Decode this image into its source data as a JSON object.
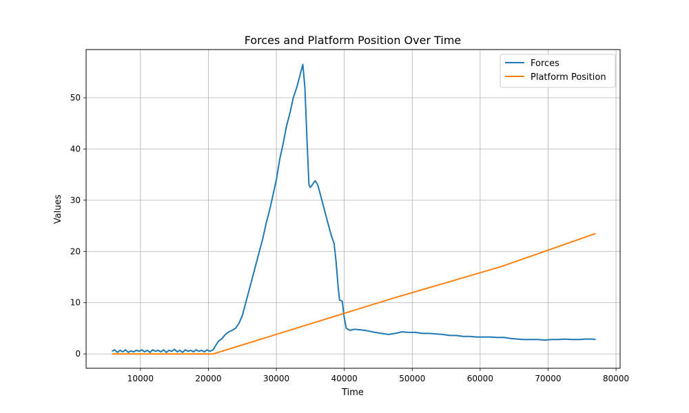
{
  "chart_data": {
    "type": "line",
    "title": "Forces and Platform Position Over Time",
    "xlabel": "Time",
    "ylabel": "Values",
    "xlim": [
      2000,
      80600
    ],
    "ylim": [
      -2.8,
      59.4
    ],
    "xticks": [
      10000,
      20000,
      30000,
      40000,
      50000,
      60000,
      70000,
      80000
    ],
    "yticks": [
      0,
      10,
      20,
      30,
      40,
      50
    ],
    "grid": true,
    "legend": "top-right",
    "series": [
      {
        "name": "Forces",
        "color": "#1f77b4",
        "points": [
          [
            5800,
            0.5
          ],
          [
            6200,
            0.8
          ],
          [
            6600,
            0.3
          ],
          [
            7000,
            0.7
          ],
          [
            7400,
            0.4
          ],
          [
            7800,
            0.8
          ],
          [
            8200,
            0.3
          ],
          [
            8600,
            0.6
          ],
          [
            9000,
            0.4
          ],
          [
            9400,
            0.7
          ],
          [
            9800,
            0.5
          ],
          [
            10200,
            0.8
          ],
          [
            10600,
            0.4
          ],
          [
            11000,
            0.7
          ],
          [
            11400,
            0.3
          ],
          [
            11800,
            0.8
          ],
          [
            12200,
            0.5
          ],
          [
            12600,
            0.7
          ],
          [
            13000,
            0.4
          ],
          [
            13400,
            0.8
          ],
          [
            13800,
            0.3
          ],
          [
            14200,
            0.7
          ],
          [
            14600,
            0.5
          ],
          [
            15000,
            0.9
          ],
          [
            15400,
            0.4
          ],
          [
            15800,
            0.7
          ],
          [
            16200,
            0.3
          ],
          [
            16600,
            0.8
          ],
          [
            17000,
            0.5
          ],
          [
            17400,
            0.7
          ],
          [
            17800,
            0.4
          ],
          [
            18200,
            0.8
          ],
          [
            18600,
            0.5
          ],
          [
            19000,
            0.7
          ],
          [
            19400,
            0.4
          ],
          [
            19800,
            0.8
          ],
          [
            20200,
            0.5
          ],
          [
            20700,
            0.8
          ],
          [
            21000,
            1.5
          ],
          [
            21500,
            2.5
          ],
          [
            22000,
            3.0
          ],
          [
            22500,
            3.8
          ],
          [
            23000,
            4.3
          ],
          [
            23500,
            4.6
          ],
          [
            24000,
            5.0
          ],
          [
            24500,
            6.0
          ],
          [
            25000,
            7.5
          ],
          [
            25500,
            10.0
          ],
          [
            26000,
            12.5
          ],
          [
            26500,
            15.0
          ],
          [
            27000,
            17.5
          ],
          [
            27500,
            20.0
          ],
          [
            28000,
            22.5
          ],
          [
            28500,
            25.5
          ],
          [
            29000,
            28.0
          ],
          [
            29500,
            31.0
          ],
          [
            30000,
            34.0
          ],
          [
            30500,
            38.0
          ],
          [
            31000,
            41.0
          ],
          [
            31500,
            44.5
          ],
          [
            32000,
            47.0
          ],
          [
            32500,
            50.0
          ],
          [
            33000,
            52.0
          ],
          [
            33500,
            54.5
          ],
          [
            33900,
            56.5
          ],
          [
            34200,
            52.0
          ],
          [
            34500,
            42.0
          ],
          [
            34800,
            33.0
          ],
          [
            35000,
            32.5
          ],
          [
            35300,
            33.0
          ],
          [
            35700,
            33.8
          ],
          [
            36100,
            33.0
          ],
          [
            36500,
            31.0
          ],
          [
            37000,
            28.5
          ],
          [
            37500,
            26.0
          ],
          [
            38000,
            23.5
          ],
          [
            38500,
            21.5
          ],
          [
            38800,
            18.0
          ],
          [
            39100,
            13.0
          ],
          [
            39300,
            10.5
          ],
          [
            39700,
            10.3
          ],
          [
            40000,
            7.0
          ],
          [
            40300,
            5.0
          ],
          [
            40800,
            4.6
          ],
          [
            41500,
            4.8
          ],
          [
            42500,
            4.7
          ],
          [
            43500,
            4.5
          ],
          [
            44500,
            4.2
          ],
          [
            45500,
            4.0
          ],
          [
            46500,
            3.8
          ],
          [
            47500,
            4.0
          ],
          [
            48500,
            4.3
          ],
          [
            49500,
            4.2
          ],
          [
            50500,
            4.2
          ],
          [
            51500,
            4.0
          ],
          [
            52500,
            4.0
          ],
          [
            53500,
            3.9
          ],
          [
            54500,
            3.8
          ],
          [
            55500,
            3.6
          ],
          [
            56500,
            3.6
          ],
          [
            57500,
            3.4
          ],
          [
            58500,
            3.4
          ],
          [
            59500,
            3.3
          ],
          [
            60500,
            3.3
          ],
          [
            61500,
            3.3
          ],
          [
            62500,
            3.2
          ],
          [
            63500,
            3.2
          ],
          [
            64500,
            3.0
          ],
          [
            65500,
            2.9
          ],
          [
            66500,
            2.8
          ],
          [
            67500,
            2.8
          ],
          [
            68500,
            2.8
          ],
          [
            69500,
            2.7
          ],
          [
            70500,
            2.8
          ],
          [
            71500,
            2.8
          ],
          [
            72500,
            2.9
          ],
          [
            73500,
            2.8
          ],
          [
            74500,
            2.8
          ],
          [
            75500,
            2.9
          ],
          [
            76500,
            2.9
          ],
          [
            77000,
            2.8
          ]
        ]
      },
      {
        "name": "Platform Position",
        "color": "#ff7f0e",
        "points": [
          [
            5800,
            0.0
          ],
          [
            20700,
            0.0
          ],
          [
            47000,
            10.8
          ],
          [
            63000,
            17.0
          ],
          [
            77000,
            23.5
          ]
        ]
      }
    ]
  }
}
